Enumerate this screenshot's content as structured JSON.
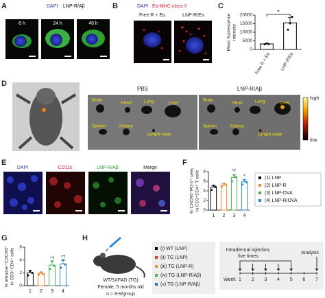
{
  "panel_a": {
    "label": "A",
    "legend": [
      "DAPI",
      "LNP-R/Aβ"
    ],
    "times": [
      "6 h",
      "24 h",
      "48 h"
    ]
  },
  "panel_b": {
    "label": "B",
    "legend": [
      "DAPI",
      "Eα-MHC class II"
    ],
    "conditions": [
      "Free R + Eα",
      "LNP-R/Eα"
    ]
  },
  "panel_c": {
    "label": "C",
    "chart": {
      "type": "bar",
      "y_label": [
        "Mean fluorescence",
        "intensity"
      ],
      "categories": [
        "Free R + Eα",
        "LNP-R/Eα"
      ],
      "values": [
        3200,
        15500
      ],
      "errors": [
        300,
        3000
      ],
      "points": [
        [
          3000,
          3500,
          3100
        ],
        [
          11500,
          15200,
          19000
        ]
      ],
      "ylim": [
        0,
        20000
      ],
      "yticks": [
        0,
        5000,
        10000,
        15000,
        20000
      ],
      "color": "#000000",
      "significance": "*"
    }
  },
  "panel_d": {
    "label": "D",
    "groups": [
      "PBS",
      "LNP-R/Aβ"
    ],
    "organs": [
      "Brain",
      "Heart",
      "Lung",
      "Liver",
      "Spleen",
      "Kidney",
      "Lymph node"
    ],
    "scale": [
      "high",
      "low"
    ]
  },
  "panel_e": {
    "label": "E",
    "channels": [
      "DAPI",
      "CD11c",
      "LNP-R/Aβ",
      "Merge"
    ]
  },
  "panel_f": {
    "label": "F",
    "chart": {
      "type": "bar",
      "y_label": [
        "% CXCR5⁺PD-1⁺ cells",
        "in CD3⁺CD4⁺ T cells"
      ],
      "categories": [
        "1",
        "2",
        "3",
        "4"
      ],
      "values": [
        4.8,
        5.2,
        6.8,
        5.9
      ],
      "errors": [
        0.3,
        0.3,
        0.6,
        0.4
      ],
      "points": [
        [
          4.2,
          5.1,
          4.8
        ],
        [
          4.9,
          5.5,
          5.3
        ],
        [
          6.0,
          7.2,
          6.9
        ],
        [
          5.3,
          6.3,
          5.8
        ]
      ],
      "ylim": [
        0,
        8
      ],
      "yticks": [
        0,
        2,
        4,
        6,
        8
      ],
      "colors": [
        "#000000",
        "#f08a3c",
        "#4caf50",
        "#2e86c1"
      ],
      "marks": [
        null,
        null,
        "*†",
        "*"
      ],
      "legend": [
        "(1) LNP",
        "(2) LNP-R",
        "(3) LNP-OVA",
        "(4) LNP-R/OVA"
      ]
    }
  },
  "panel_g": {
    "label": "G",
    "chart": {
      "type": "bar",
      "y_label": [
        "% tetramer⁺CXCR5⁺",
        "in CD3⁺CD4⁺ cells"
      ],
      "categories": [
        "1",
        "2",
        "3",
        "4"
      ],
      "values": [
        2.0,
        1.9,
        3.2,
        3.4
      ],
      "errors": [
        0.3,
        0.2,
        0.5,
        0.5
      ],
      "points": [
        [
          1.6,
          2.3,
          2.0
        ],
        [
          1.7,
          2.1,
          1.8
        ],
        [
          2.6,
          3.8,
          3.1
        ],
        [
          2.8,
          4.0,
          3.3
        ]
      ],
      "ylim": [
        0,
        6
      ],
      "yticks": [
        0,
        2,
        4,
        6
      ],
      "colors": [
        "#000000",
        "#f08a3c",
        "#4caf50",
        "#2e86c1"
      ],
      "marks": [
        null,
        null,
        "*†",
        "*†"
      ]
    }
  },
  "panel_h": {
    "label": "H",
    "mouse": [
      "WT/5XFAD (TG)",
      "Female, 5 months old",
      "n = 8-9/group"
    ],
    "groups": [
      {
        "name": "(i) WT (LNP)",
        "color": "#000000"
      },
      {
        "name": "(ii) TG (LNP)",
        "color": "#e53935"
      },
      {
        "name": "(iii) TG (LNP-R)",
        "color": "#f08a3c"
      },
      {
        "name": "(iv) TG (LNP-R/Aβ)",
        "color": "#4caf50"
      },
      {
        "name": "(v) TG (LNP-R/Aβ)",
        "color": "#2e6fc1"
      }
    ],
    "timeline": {
      "injection": [
        "Intradermal injection,",
        "five times"
      ],
      "analysis": "Analysis",
      "axis_label": "Week",
      "weeks": [
        "1",
        "2",
        "3",
        "4",
        "5",
        "6",
        "7"
      ]
    }
  }
}
